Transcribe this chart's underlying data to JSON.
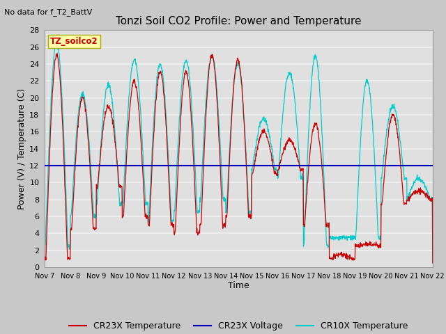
{
  "title": "Tonzi Soil CO2 Profile: Power and Temperature",
  "subtitle": "No data for f_T2_BattV",
  "ylabel": "Power (V) / Temperature (C)",
  "xlabel": "Time",
  "ylim": [
    0,
    28
  ],
  "yticks": [
    0,
    2,
    4,
    6,
    8,
    10,
    12,
    14,
    16,
    18,
    20,
    22,
    24,
    26,
    28
  ],
  "xtick_labels": [
    "Nov 7",
    "Nov 8",
    "Nov 9",
    "Nov 10",
    "Nov 11",
    "Nov 12",
    "Nov 13",
    "Nov 14",
    "Nov 15",
    "Nov 16",
    "Nov 17",
    "Nov 18",
    "Nov 19",
    "Nov 20",
    "Nov 21",
    "Nov 22"
  ],
  "voltage_line": 12.0,
  "voltage_color": "#0000bb",
  "cr23x_temp_color": "#cc0000",
  "cr10x_temp_color": "#00cccc",
  "legend_label_site": "TZ_soilco2",
  "legend_label_cr23x_temp": "CR23X Temperature",
  "legend_label_voltage": "CR23X Voltage",
  "legend_label_cr10x_temp": "CR10X Temperature",
  "fig_bg_color": "#c8c8c8",
  "plot_bg_color": "#e0e0e0",
  "grid_color": "#f0f0f0",
  "title_fontsize": 11,
  "axis_fontsize": 9,
  "tick_fontsize": 8,
  "num_days": 15,
  "cr23x_peaks": [
    25,
    20,
    19,
    22,
    23,
    23,
    25,
    24.5,
    16,
    15,
    17,
    1.5,
    2.7,
    18,
    9
  ],
  "cr23x_mins": [
    1,
    4.5,
    9.5,
    6,
    5,
    4,
    5,
    6,
    11,
    11.5,
    5,
    1,
    2.5,
    7.5,
    8
  ],
  "cr10x_peaks": [
    26.5,
    20.5,
    21.5,
    24.5,
    24,
    24.5,
    25,
    24,
    17.5,
    23,
    25,
    3.5,
    22,
    19,
    10.5
  ],
  "cr10x_mins": [
    2.5,
    6,
    7.5,
    7.5,
    5.5,
    6.5,
    8,
    6.5,
    11.5,
    10.5,
    2.5,
    3.5,
    3.5,
    10.5,
    8
  ]
}
